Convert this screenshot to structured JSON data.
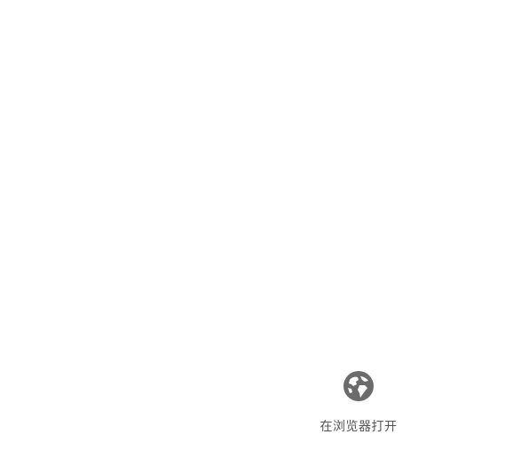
{
  "actions": {
    "open_in_browser": {
      "label": "在浏览器打开",
      "icon": "globe-icon"
    }
  },
  "colors": {
    "background": "#ffffff",
    "icon": "#6b6b6b",
    "label": "#555555"
  }
}
